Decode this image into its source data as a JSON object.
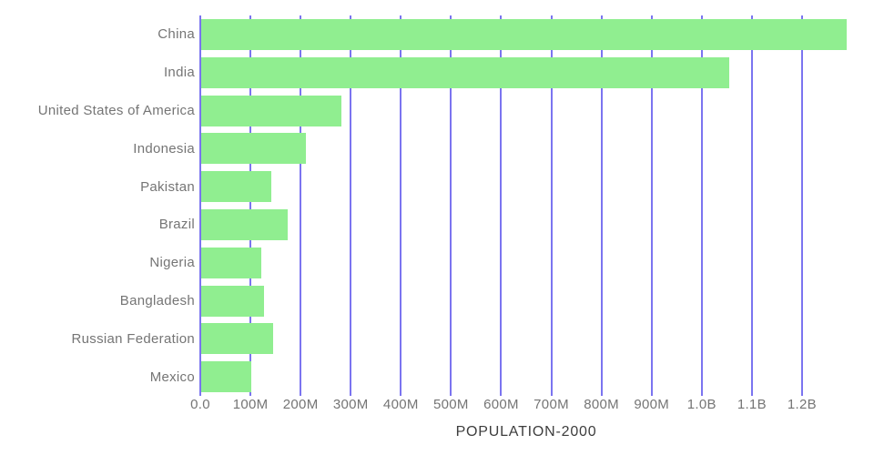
{
  "chart_data": {
    "type": "bar",
    "orientation": "horizontal",
    "title": "POPULATION-2000",
    "categories": [
      "China",
      "India",
      "United States of America",
      "Indonesia",
      "Pakistan",
      "Brazil",
      "Nigeria",
      "Bangladesh",
      "Russian Federation",
      "Mexico"
    ],
    "values": [
      1290000000,
      1054000000,
      281000000,
      210000000,
      141000000,
      174000000,
      122000000,
      128000000,
      146000000,
      101000000
    ],
    "value_unit": "people",
    "x_tick_labels": [
      "0.0",
      "100M",
      "200M",
      "300M",
      "400M",
      "500M",
      "600M",
      "700M",
      "800M",
      "900M",
      "1.0B",
      "1.1B",
      "1.2B"
    ],
    "x_tick_values": [
      0,
      100000000,
      200000000,
      300000000,
      400000000,
      500000000,
      600000000,
      700000000,
      800000000,
      900000000,
      1000000000,
      1100000000,
      1200000000
    ],
    "xlim": [
      0,
      1300000000
    ],
    "xlabel": "POPULATION-2000",
    "ylabel": "",
    "grid": true,
    "grid_axis": "x",
    "legend": false,
    "title_position": "bottom",
    "colors": {
      "bar": "#90EE90",
      "gridline": "#7B74F0",
      "category_label": "#757575",
      "tick_label": "#757575",
      "title": "#3d3d3d",
      "background": "#ffffff"
    }
  }
}
